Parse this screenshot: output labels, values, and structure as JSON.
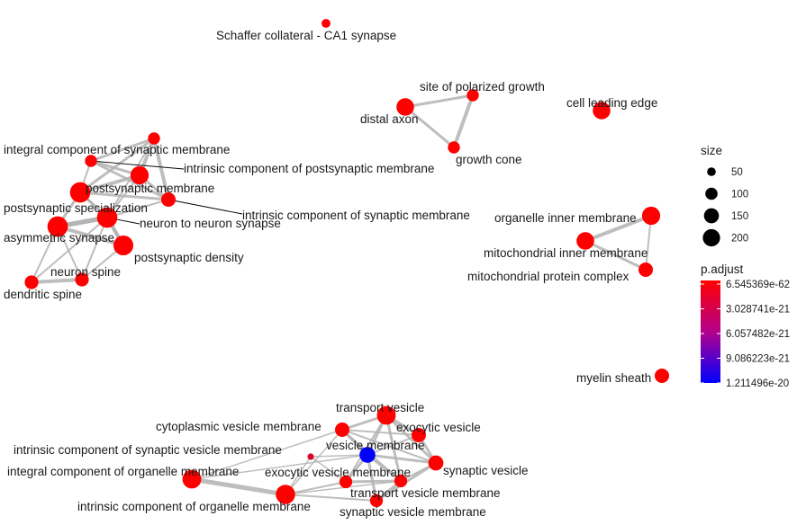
{
  "nodes": [
    {
      "id": "schaffer",
      "label": "Schaffer collateral - CA1 synapse",
      "size": 38,
      "padj_level": 0
    },
    {
      "id": "site_pol",
      "label": "site of polarized growth",
      "size": 70,
      "padj_level": 0
    },
    {
      "id": "distal_axon",
      "label": "distal axon",
      "size": 150,
      "padj_level": 0
    },
    {
      "id": "growth_cone",
      "label": "growth cone",
      "size": 70,
      "padj_level": 0
    },
    {
      "id": "cell_leading",
      "label": "cell leading edge",
      "size": 150,
      "padj_level": 0
    },
    {
      "id": "icsm",
      "label": "integral component of synaptic membrane",
      "size": 70,
      "padj_level": 0
    },
    {
      "id": "icpm",
      "label": "intrinsic component of postsynaptic membrane",
      "size": 70,
      "padj_level": 0
    },
    {
      "id": "postsyn_mem",
      "label": "postsynaptic membrane",
      "size": 160,
      "padj_level": 0
    },
    {
      "id": "pm",
      "label": "postsynaptic membrane",
      "size": 200,
      "padj_level": 0
    },
    {
      "id": "intr_syn_mem",
      "label": "intrinsic component of synaptic membrane",
      "size": 100,
      "padj_level": 0
    },
    {
      "id": "postsyn_spec",
      "label": "postsynaptic specialization",
      "size": 200,
      "padj_level": 0
    },
    {
      "id": "n2n",
      "label": "neuron to neuron synapse",
      "size": 200,
      "padj_level": 0
    },
    {
      "id": "asym",
      "label": "asymmetric synapse",
      "size": 200,
      "padj_level": 0
    },
    {
      "id": "psd",
      "label": "postsynaptic density",
      "size": 190,
      "padj_level": 0
    },
    {
      "id": "neuron_spine",
      "label": "neuron spine",
      "size": 90,
      "padj_level": 0
    },
    {
      "id": "dendritic_spine",
      "label": "dendritic spine",
      "size": 90,
      "padj_level": 0
    },
    {
      "id": "org_inner",
      "label": "organelle inner membrane",
      "size": 160,
      "padj_level": 0
    },
    {
      "id": "mito_inner",
      "label": "mitochondrial inner membrane",
      "size": 150,
      "padj_level": 0
    },
    {
      "id": "mito_prot",
      "label": "mitochondrial protein complex",
      "size": 100,
      "padj_level": 0
    },
    {
      "id": "myelin",
      "label": "myelin sheath",
      "size": 100,
      "padj_level": 0
    },
    {
      "id": "transport_ves",
      "label": "transport vesicle",
      "size": 170,
      "padj_level": 0
    },
    {
      "id": "cyto_ves",
      "label": "cytoplasmic vesicle membrane",
      "size": 100,
      "padj_level": 0
    },
    {
      "id": "exo_ves",
      "label": "exocytic vesicle",
      "size": 100,
      "padj_level": 0
    },
    {
      "id": "ves_mem",
      "label": "vesicle membrane",
      "size": 120,
      "padj_level": 1
    },
    {
      "id": "icsvm",
      "label": "intrinsic component of synaptic vesicle membrane",
      "size": 20,
      "padj_level": 0.12
    },
    {
      "id": "syn_ves",
      "label": "synaptic vesicle",
      "size": 110,
      "padj_level": 0
    },
    {
      "id": "exo_ves_mem",
      "label": "exocytic vesicle membrane",
      "size": 80,
      "padj_level": 0
    },
    {
      "id": "icom",
      "label": "integral component of organelle membrane",
      "size": 170,
      "padj_level": 0
    },
    {
      "id": "tvm",
      "label": "transport vesicle membrane",
      "size": 80,
      "padj_level": 0
    },
    {
      "id": "iom",
      "label": "intrinsic component of organelle membrane",
      "size": 180,
      "padj_level": 0
    },
    {
      "id": "svm",
      "label": "synaptic vesicle membrane",
      "size": 80,
      "padj_level": 0
    }
  ],
  "edges": [
    [
      "distal_axon",
      "site_pol",
      3
    ],
    [
      "distal_axon",
      "growth_cone",
      3
    ],
    [
      "site_pol",
      "growth_cone",
      4
    ],
    [
      "org_inner",
      "mito_inner",
      4
    ],
    [
      "mito_inner",
      "mito_prot",
      3
    ],
    [
      "org_inner",
      "mito_prot",
      2
    ],
    [
      "icsm",
      "icpm",
      3
    ],
    [
      "icsm",
      "postsyn_mem",
      4
    ],
    [
      "icsm",
      "pm",
      3
    ],
    [
      "icsm",
      "intr_syn_mem",
      4
    ],
    [
      "icpm",
      "postsyn_mem",
      3
    ],
    [
      "icpm",
      "pm",
      2
    ],
    [
      "icpm",
      "intr_syn_mem",
      3
    ],
    [
      "postsyn_mem",
      "pm",
      4
    ],
    [
      "postsyn_mem",
      "intr_syn_mem",
      3
    ],
    [
      "postsyn_mem",
      "postsyn_spec",
      2
    ],
    [
      "pm",
      "postsyn_spec",
      3
    ],
    [
      "pm",
      "n2n",
      3
    ],
    [
      "pm",
      "asym",
      3
    ],
    [
      "pm",
      "intr_syn_mem",
      3
    ],
    [
      "postsyn_spec",
      "n2n",
      5
    ],
    [
      "postsyn_spec",
      "asym",
      5
    ],
    [
      "postsyn_spec",
      "psd",
      4
    ],
    [
      "postsyn_spec",
      "neuron_spine",
      2
    ],
    [
      "postsyn_spec",
      "dendritic_spine",
      2
    ],
    [
      "n2n",
      "asym",
      5
    ],
    [
      "n2n",
      "psd",
      4
    ],
    [
      "asym",
      "psd",
      4
    ],
    [
      "asym",
      "dendritic_spine",
      2
    ],
    [
      "asym",
      "neuron_spine",
      2
    ],
    [
      "neuron_spine",
      "dendritic_spine",
      4
    ],
    [
      "psd",
      "neuron_spine",
      2
    ],
    [
      "intr_syn_mem",
      "n2n",
      2
    ],
    [
      "icsm",
      "postsyn_spec",
      2
    ],
    [
      "transport_ves",
      "cyto_ves",
      3
    ],
    [
      "transport_ves",
      "exo_ves",
      3
    ],
    [
      "transport_ves",
      "ves_mem",
      3
    ],
    [
      "transport_ves",
      "syn_ves",
      3
    ],
    [
      "transport_ves",
      "exo_ves_mem",
      2
    ],
    [
      "transport_ves",
      "tvm",
      3
    ],
    [
      "cyto_ves",
      "exo_ves",
      2
    ],
    [
      "cyto_ves",
      "ves_mem",
      3
    ],
    [
      "cyto_ves",
      "syn_ves",
      2
    ],
    [
      "exo_ves",
      "ves_mem",
      2
    ],
    [
      "exo_ves",
      "syn_ves",
      3
    ],
    [
      "ves_mem",
      "syn_ves",
      3
    ],
    [
      "ves_mem",
      "exo_ves_mem",
      3
    ],
    [
      "ves_mem",
      "tvm",
      3
    ],
    [
      "ves_mem",
      "svm",
      3
    ],
    [
      "syn_ves",
      "tvm",
      2
    ],
    [
      "syn_ves",
      "svm",
      3
    ],
    [
      "exo_ves_mem",
      "tvm",
      3
    ],
    [
      "tvm",
      "svm",
      3
    ],
    [
      "icom",
      "iom",
      5
    ],
    [
      "icom",
      "ves_mem",
      1.5
    ],
    [
      "iom",
      "exo_ves_mem",
      2
    ],
    [
      "iom",
      "svm",
      2
    ],
    [
      "iom",
      "cyto_ves",
      1.5
    ],
    [
      "icsvm",
      "ves_mem",
      1.5
    ],
    [
      "icsvm",
      "exo_ves_mem",
      1.5
    ],
    [
      "icsvm",
      "iom",
      1.5
    ],
    [
      "icom",
      "cyto_ves",
      1.5
    ],
    [
      "iom",
      "tvm",
      1.5
    ],
    [
      "cyto_ves",
      "tvm",
      2
    ]
  ],
  "legend": {
    "size_title": "size",
    "size_entries": [
      {
        "label": "50",
        "value": 50
      },
      {
        "label": "100",
        "value": 100
      },
      {
        "label": "150",
        "value": 150
      },
      {
        "label": "200",
        "value": 200
      }
    ],
    "color_title": "p.adjust",
    "color_ticks": [
      "6.545369e-62",
      "3.028741e-21",
      "6.057482e-21",
      "9.086223e-21",
      "1.211496e-20"
    ],
    "color_low": "#ff0000",
    "color_high": "#0000ff"
  },
  "colors": {
    "edge": "#b3b3b3",
    "leader": "#000000",
    "text": "#1a1a1a"
  }
}
